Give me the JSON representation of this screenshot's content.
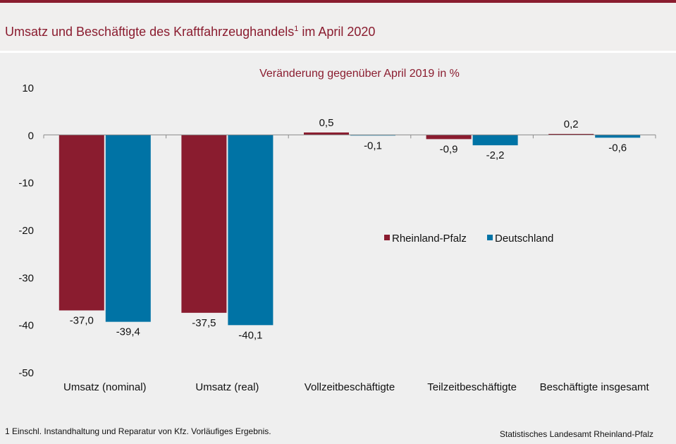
{
  "header": {
    "title_main": "Umsatz und Beschäftigte des Kraftfahrzeughandels",
    "title_sup": "1",
    "title_rest": " im April 2020"
  },
  "chart_data": {
    "type": "bar",
    "subtitle": "Veränderung gegenüber April 2019 in %",
    "categories": [
      "Umsatz (nominal)",
      "Umsatz (real)",
      "Vollzeitbeschäftigte",
      "Teilzeitbeschäftigte",
      "Beschäftigte insgesamt"
    ],
    "series": [
      {
        "name": "Rheinland-Pfalz",
        "values": [
          -37.0,
          -37.5,
          0.5,
          -0.9,
          0.2
        ],
        "labels": [
          "-37,0",
          "-37,5",
          "0,5",
          "-0,9",
          "0,2"
        ],
        "color": "#8a1c2f"
      },
      {
        "name": "Deutschland",
        "values": [
          -39.4,
          -40.1,
          -0.1,
          -2.2,
          -0.6
        ],
        "labels": [
          "-39,4",
          "-40,1",
          "-0,1",
          "-2,2",
          "-0,6"
        ],
        "color": "#0073a5"
      }
    ],
    "ylim": [
      -50,
      10
    ],
    "yticks": [
      10,
      0,
      -10,
      -20,
      -30,
      -40,
      -50
    ],
    "grid": false,
    "legend_position": "center-right"
  },
  "footer": {
    "footnote": "1 Einschl. Instandhaltung und Reparatur von Kfz. Vorläufiges Ergebnis.",
    "source": "Statistisches Landesamt Rheinland-Pfalz"
  }
}
